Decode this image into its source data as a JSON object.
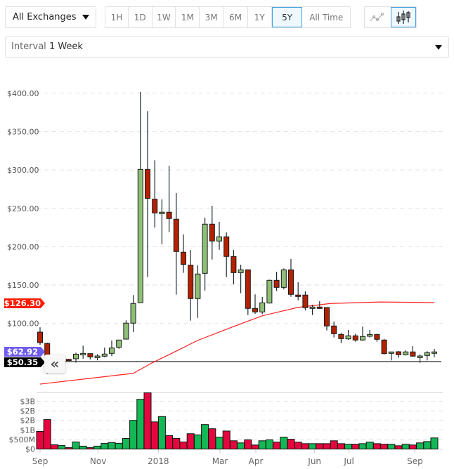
{
  "toolbar": {
    "exchange": "All Exchanges",
    "ranges": [
      "1H",
      "1D",
      "1W",
      "1M",
      "3M",
      "6M",
      "1Y",
      "5Y",
      "All Time"
    ],
    "active_range": "5Y",
    "chart_types": [
      {
        "icon": "line-chart-icon",
        "active": false
      },
      {
        "icon": "candlestick-chart-icon",
        "active": true
      }
    ],
    "interval_label": "Interval",
    "interval_value": "1 Week"
  },
  "chart_data": {
    "type": "candlestick",
    "price_ticks": [
      "$400.00",
      "$350.00",
      "$300.00",
      "$250.00",
      "$200.00",
      "$150.00",
      "$100.00"
    ],
    "price_tick_values": [
      400,
      350,
      300,
      250,
      200,
      150,
      100
    ],
    "ylim": [
      0,
      400
    ],
    "volume_ticks": [
      "$3B",
      "$2B",
      "$2B",
      "$1B",
      "$500M",
      "$0"
    ],
    "volume_tick_values": [
      2.5,
      2,
      1.5,
      1,
      0.5,
      0
    ],
    "volume_ylim": [
      0,
      3
    ],
    "x_labels": [
      {
        "label": "Sep",
        "i": 0
      },
      {
        "label": "Nov",
        "i": 8.1
      },
      {
        "label": "2018",
        "i": 16.5
      },
      {
        "label": "Mar",
        "i": 25.1
      },
      {
        "label": "Apr",
        "i": 30.1
      },
      {
        "label": "Jun",
        "i": 38.3
      },
      {
        "label": "Jul",
        "i": 43.1
      },
      {
        "label": "Sep",
        "i": 52.3
      }
    ],
    "ohlc": [
      [
        88.7,
        95,
        72,
        75
      ],
      [
        74,
        75,
        35,
        55
      ],
      [
        55,
        57,
        48,
        51
      ],
      [
        51,
        56,
        50,
        53
      ],
      [
        53.3,
        54,
        52,
        52
      ],
      [
        54,
        62,
        49,
        60
      ],
      [
        59,
        71,
        54,
        61
      ],
      [
        60.7,
        61,
        53,
        56.4
      ],
      [
        55.5,
        60,
        52,
        57.6
      ],
      [
        57.3,
        68.6,
        56,
        60.1
      ],
      [
        61,
        77.8,
        57.4,
        68
      ],
      [
        69,
        78.4,
        67,
        78.4
      ],
      [
        79.6,
        104,
        79,
        100.4
      ],
      [
        100.4,
        137,
        88.7,
        126
      ],
      [
        127,
        401.6,
        127,
        300.7
      ],
      [
        300.7,
        376.7,
        160.4,
        263
      ],
      [
        262,
        312.6,
        225,
        244
      ],
      [
        243,
        261.7,
        203,
        245
      ],
      [
        245,
        305.6,
        219,
        236.7
      ],
      [
        235.8,
        270,
        137.6,
        193.7
      ],
      [
        192.8,
        216,
        166,
        177
      ],
      [
        176,
        195.8,
        103.7,
        132.4
      ],
      [
        132.4,
        175.7,
        107.3,
        164.4
      ],
      [
        165.3,
        237.9,
        143,
        229.4
      ],
      [
        229.4,
        253.4,
        183.3,
        207.4
      ],
      [
        207.4,
        232.4,
        196,
        212.9
      ],
      [
        212.9,
        218.7,
        160.4,
        187.3
      ],
      [
        187.3,
        195.8,
        151,
        166.2
      ],
      [
        166.2,
        176.6,
        139.4,
        169.9
      ],
      [
        169.9,
        170.5,
        111,
        119.6
      ],
      [
        119.6,
        137.9,
        112.3,
        115
      ],
      [
        115,
        134.5,
        112,
        126.9
      ],
      [
        126.6,
        157,
        126,
        156.2
      ],
      [
        156.2,
        167.4,
        142.4,
        147
      ],
      [
        147,
        171.7,
        144.3,
        169.9
      ],
      [
        169.9,
        183.9,
        134.8,
        137.9
      ],
      [
        137,
        153.7,
        130.2,
        135.1
      ],
      [
        137,
        141.8,
        117,
        120.5
      ],
      [
        119.6,
        124.4,
        111,
        121.4
      ],
      [
        121.4,
        129,
        119,
        119.6
      ],
      [
        120.8,
        121.2,
        90.9,
        96.7
      ],
      [
        96.7,
        102.5,
        81.7,
        86.6
      ],
      [
        85.7,
        87.6,
        74.4,
        80.2
      ],
      [
        79.9,
        91.5,
        78.7,
        83.9
      ],
      [
        83.9,
        86.6,
        76.2,
        78.4
      ],
      [
        78.4,
        96,
        77.5,
        83
      ],
      [
        83.3,
        91.5,
        81.7,
        85.7
      ],
      [
        85.7,
        86.5,
        76.2,
        79.3
      ],
      [
        78.4,
        79.9,
        59.7,
        60.7
      ],
      [
        61,
        62.9,
        51.9,
        62.9
      ],
      [
        63.1,
        64,
        55.2,
        59.2
      ],
      [
        59.2,
        65,
        58.3,
        62.9
      ],
      [
        62.9,
        70.4,
        56.4,
        57.4
      ],
      [
        55.5,
        59.7,
        48.8,
        57.6
      ],
      [
        58.3,
        63.8,
        51.9,
        61.9
      ],
      [
        61.9,
        66.8,
        56,
        62.92
      ]
    ],
    "volume_billions": [
      0.92,
      1.54,
      0.22,
      0.18,
      0.07,
      0.37,
      0.15,
      0.07,
      0.15,
      0.29,
      0.34,
      0.3,
      0.55,
      1.5,
      2.6,
      2.94,
      1.42,
      1.7,
      0.7,
      0.55,
      0.37,
      0.8,
      0.74,
      1.28,
      1.06,
      0.62,
      0.94,
      0.43,
      0.32,
      0.48,
      0.21,
      0.43,
      0.48,
      0.36,
      0.62,
      0.51,
      0.36,
      0.28,
      0.28,
      0.28,
      0.28,
      0.43,
      0.28,
      0.25,
      0.25,
      0.28,
      0.36,
      0.28,
      0.25,
      0.25,
      0.17,
      0.25,
      0.21,
      0.32,
      0.39,
      0.58
    ],
    "moving_average": [
      [
        0,
        21
      ],
      [
        13,
        35
      ],
      [
        15.5,
        48
      ],
      [
        19,
        64
      ],
      [
        22,
        78
      ],
      [
        27,
        96
      ],
      [
        31,
        110
      ],
      [
        36,
        121
      ],
      [
        40.5,
        126
      ],
      [
        47.5,
        128
      ],
      [
        55,
        127.2
      ]
    ],
    "labels": {
      "moving_average": "$126.30",
      "current": "$62.92",
      "low": "$50.35"
    },
    "low_line_value": 50.35,
    "colors": {
      "up": "#8fbf77",
      "down": "#b22200",
      "wick": "#1e2a32",
      "vol_up": "#14b755",
      "vol_down": "#e6063f",
      "ma": "#ff2020",
      "current_label": "#6f5cf0",
      "low_label": "#000000",
      "ma_label": "#ff1a00"
    }
  }
}
